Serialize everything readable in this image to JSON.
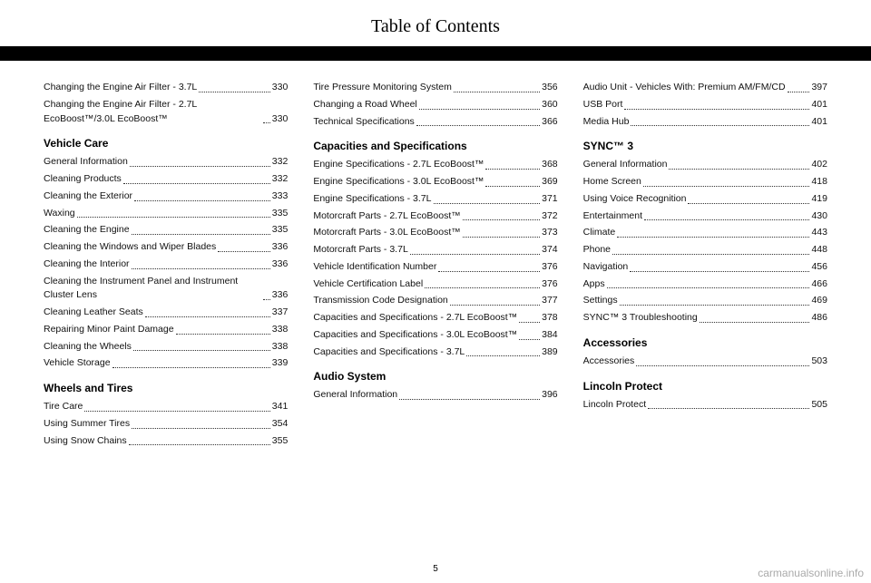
{
  "header": {
    "title": "Table of Contents"
  },
  "footer": {
    "page": "5",
    "watermark": "carmanualsonline.info"
  },
  "columns": [
    {
      "blocks": [
        {
          "type": "entry",
          "label": "Changing the Engine Air Filter - 3.7L",
          "page": "330"
        },
        {
          "type": "entry",
          "label": "Changing the Engine Air Filter - 2.7L EcoBoost™/3.0L EcoBoost™",
          "page": "330"
        },
        {
          "type": "section",
          "label": "Vehicle Care"
        },
        {
          "type": "entry",
          "label": "General Information",
          "page": "332"
        },
        {
          "type": "entry",
          "label": "Cleaning Products",
          "page": "332"
        },
        {
          "type": "entry",
          "label": "Cleaning the Exterior",
          "page": "333"
        },
        {
          "type": "entry",
          "label": "Waxing",
          "page": "335"
        },
        {
          "type": "entry",
          "label": "Cleaning the Engine",
          "page": "335"
        },
        {
          "type": "entry",
          "label": "Cleaning the Windows and Wiper Blades",
          "page": "336"
        },
        {
          "type": "entry",
          "label": "Cleaning the Interior",
          "page": "336"
        },
        {
          "type": "entry",
          "label": "Cleaning the Instrument Panel and Instrument Cluster Lens",
          "page": "336"
        },
        {
          "type": "entry",
          "label": "Cleaning Leather Seats",
          "page": "337"
        },
        {
          "type": "entry",
          "label": "Repairing Minor Paint Damage",
          "page": "338"
        },
        {
          "type": "entry",
          "label": "Cleaning the Wheels",
          "page": "338"
        },
        {
          "type": "entry",
          "label": "Vehicle Storage",
          "page": "339"
        },
        {
          "type": "section",
          "label": "Wheels and Tires"
        },
        {
          "type": "entry",
          "label": "Tire Care",
          "page": "341"
        },
        {
          "type": "entry",
          "label": "Using Summer Tires",
          "page": "354"
        },
        {
          "type": "entry",
          "label": "Using Snow Chains",
          "page": "355"
        }
      ]
    },
    {
      "blocks": [
        {
          "type": "entry",
          "label": "Tire Pressure Monitoring System",
          "page": "356"
        },
        {
          "type": "entry",
          "label": "Changing a Road Wheel",
          "page": "360"
        },
        {
          "type": "entry",
          "label": "Technical Specifications",
          "page": "366"
        },
        {
          "type": "section",
          "label": "Capacities and Specifications"
        },
        {
          "type": "entry",
          "label": "Engine Specifications - 2.7L EcoBoost™",
          "page": "368"
        },
        {
          "type": "entry",
          "label": "Engine Specifications - 3.0L EcoBoost™",
          "page": "369"
        },
        {
          "type": "entry",
          "label": "Engine Specifications - 3.7L",
          "page": "371"
        },
        {
          "type": "entry",
          "label": "Motorcraft Parts - 2.7L EcoBoost™",
          "page": "372"
        },
        {
          "type": "entry",
          "label": "Motorcraft Parts - 3.0L EcoBoost™",
          "page": "373"
        },
        {
          "type": "entry",
          "label": "Motorcraft Parts - 3.7L",
          "page": "374"
        },
        {
          "type": "entry",
          "label": "Vehicle Identification Number",
          "page": "376"
        },
        {
          "type": "entry",
          "label": "Vehicle Certification Label",
          "page": "376"
        },
        {
          "type": "entry",
          "label": "Transmission Code Designation",
          "page": "377"
        },
        {
          "type": "entry",
          "label": "Capacities and Specifications - 2.7L EcoBoost™",
          "page": "378"
        },
        {
          "type": "entry",
          "label": "Capacities and Specifications - 3.0L EcoBoost™",
          "page": "384"
        },
        {
          "type": "entry",
          "label": "Capacities and Specifications - 3.7L",
          "page": "389"
        },
        {
          "type": "section",
          "label": "Audio System"
        },
        {
          "type": "entry",
          "label": "General Information",
          "page": "396"
        }
      ]
    },
    {
      "blocks": [
        {
          "type": "entry",
          "label": "Audio Unit - Vehicles With: Premium AM/FM/CD",
          "page": "397"
        },
        {
          "type": "entry",
          "label": "USB Port",
          "page": "401"
        },
        {
          "type": "entry",
          "label": "Media Hub",
          "page": "401"
        },
        {
          "type": "section",
          "label": "SYNC™ 3"
        },
        {
          "type": "entry",
          "label": "General Information",
          "page": "402"
        },
        {
          "type": "entry",
          "label": "Home Screen",
          "page": "418"
        },
        {
          "type": "entry",
          "label": "Using Voice Recognition",
          "page": "419"
        },
        {
          "type": "entry",
          "label": "Entertainment",
          "page": "430"
        },
        {
          "type": "entry",
          "label": "Climate",
          "page": "443"
        },
        {
          "type": "entry",
          "label": "Phone",
          "page": "448"
        },
        {
          "type": "entry",
          "label": "Navigation",
          "page": "456"
        },
        {
          "type": "entry",
          "label": "Apps",
          "page": "466"
        },
        {
          "type": "entry",
          "label": "Settings",
          "page": "469"
        },
        {
          "type": "entry",
          "label": "SYNC™ 3 Troubleshooting",
          "page": "486"
        },
        {
          "type": "section",
          "label": "Accessories"
        },
        {
          "type": "entry",
          "label": "Accessories",
          "page": "503"
        },
        {
          "type": "section",
          "label": "Lincoln Protect"
        },
        {
          "type": "entry",
          "label": "Lincoln Protect",
          "page": "505"
        }
      ]
    }
  ]
}
